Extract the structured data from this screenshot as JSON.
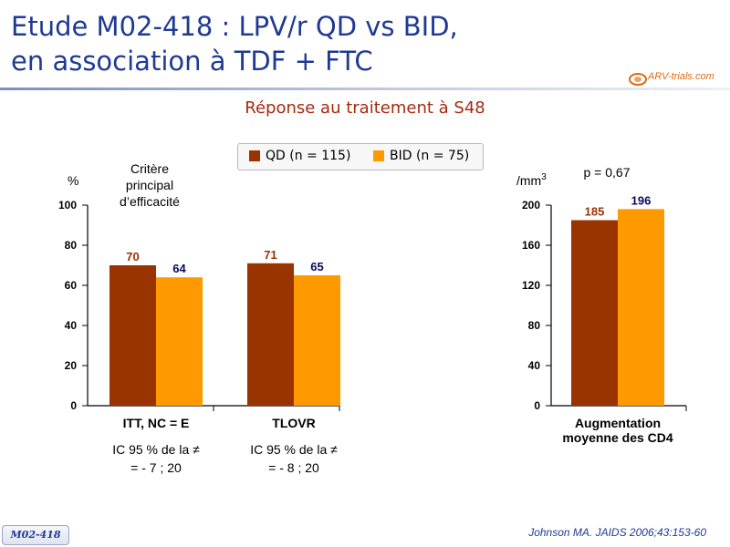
{
  "header": {
    "title_line1": "Etude M02-418 : LPV/r QD vs BID,",
    "title_line2": "en association à TDF + FTC",
    "logo_text": "ARV-trials.com",
    "subtitle": "Réponse au traitement à S48"
  },
  "colors": {
    "qd": "#993300",
    "bid": "#ff9900",
    "title": "#1f3a93",
    "subtitle": "#a52a0e"
  },
  "chart_data": [
    {
      "type": "bar",
      "y_unit_label": "%",
      "annotation": "Critère\nprincipal\nd’efficacité",
      "ylim": [
        0,
        100
      ],
      "yticks": [
        0,
        20,
        40,
        60,
        80,
        100
      ],
      "categories": [
        "ITT, NC = E",
        "TLOVR"
      ],
      "series": [
        {
          "name": "QD (n = 115)",
          "values": [
            70,
            71
          ]
        },
        {
          "name": "BID (n = 75)",
          "values": [
            64,
            65
          ]
        }
      ],
      "notes": [
        "IC 95 % de la ≠\n= - 7 ; 20",
        "IC 95 % de la ≠\n= - 8 ; 20"
      ]
    },
    {
      "type": "bar",
      "y_unit_label": "/mm",
      "y_unit_sup": "3",
      "annotation": "p = 0,67",
      "ylim": [
        0,
        200
      ],
      "yticks": [
        0,
        40,
        80,
        120,
        160,
        200
      ],
      "categories": [
        "Augmentation\nmoyenne des CD4"
      ],
      "series": [
        {
          "name": "QD (n = 115)",
          "values": [
            185
          ]
        },
        {
          "name": "BID (n = 75)",
          "values": [
            196
          ]
        }
      ]
    }
  ],
  "footer": {
    "study_tag": "M02-418",
    "citation": "Johnson MA. JAIDS 2006;43:153-60"
  }
}
